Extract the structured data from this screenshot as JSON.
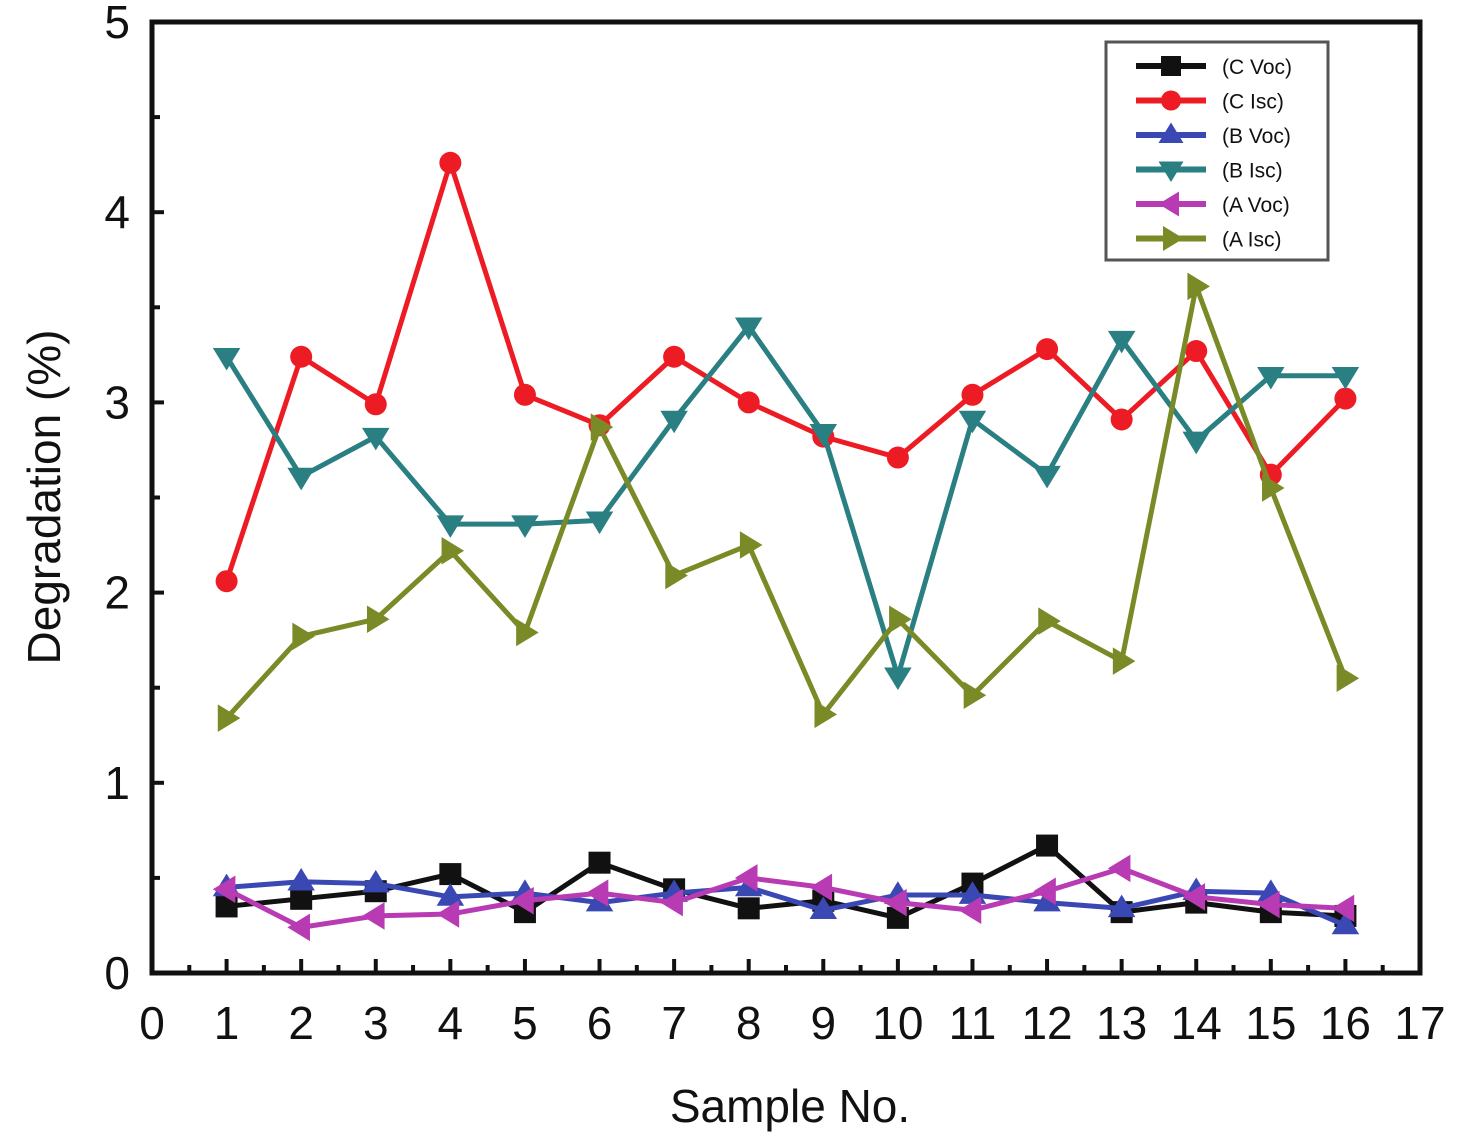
{
  "chart_data": {
    "type": "line",
    "title": "",
    "xlabel": "Sample No.",
    "ylabel": "Degradation (%)",
    "xlim": [
      0,
      17
    ],
    "ylim": [
      0,
      5
    ],
    "xticks": [
      "0",
      "1",
      "2",
      "3",
      "4",
      "5",
      "6",
      "7",
      "8",
      "9",
      "10",
      "11",
      "12",
      "13",
      "14",
      "15",
      "16",
      "17"
    ],
    "yticks": [
      "0",
      "1",
      "2",
      "3",
      "4",
      "5"
    ],
    "grid": false,
    "legend_position": "top-right",
    "x": [
      1,
      2,
      3,
      4,
      5,
      6,
      7,
      8,
      9,
      10,
      11,
      12,
      13,
      14,
      15,
      16
    ],
    "series": [
      {
        "name": "(C Voc)",
        "color": "#111111",
        "marker": "square",
        "values": [
          0.35,
          0.39,
          0.43,
          0.52,
          0.32,
          0.58,
          0.44,
          0.34,
          0.38,
          0.29,
          0.47,
          0.67,
          0.32,
          0.37,
          0.32,
          0.3
        ]
      },
      {
        "name": "(C Isc)",
        "color": "#ed1c24",
        "marker": "circle",
        "values": [
          2.06,
          3.24,
          2.99,
          4.26,
          3.04,
          2.88,
          3.24,
          3.0,
          2.82,
          2.71,
          3.04,
          3.28,
          2.91,
          3.27,
          2.62,
          3.02
        ]
      },
      {
        "name": "(B Voc)",
        "color": "#3a48b4",
        "marker": "triangle-up",
        "values": [
          0.45,
          0.48,
          0.47,
          0.4,
          0.42,
          0.37,
          0.42,
          0.45,
          0.33,
          0.41,
          0.41,
          0.37,
          0.34,
          0.43,
          0.42,
          0.25
        ]
      },
      {
        "name": "(B Isc)",
        "color": "#2a7f83",
        "marker": "triangle-down",
        "values": [
          3.24,
          2.61,
          2.82,
          2.36,
          2.36,
          2.38,
          2.91,
          3.4,
          2.84,
          1.56,
          2.91,
          2.62,
          3.33,
          2.8,
          3.14,
          3.14
        ]
      },
      {
        "name": "(A Voc)",
        "color": "#b83bb4",
        "marker": "triangle-left",
        "values": [
          0.44,
          0.24,
          0.3,
          0.31,
          0.38,
          0.42,
          0.37,
          0.5,
          0.45,
          0.37,
          0.33,
          0.43,
          0.55,
          0.4,
          0.36,
          0.34
        ]
      },
      {
        "name": "(A Isc)",
        "color": "#7a8a26",
        "marker": "triangle-right",
        "values": [
          1.34,
          1.77,
          1.86,
          2.22,
          1.79,
          2.87,
          2.09,
          2.25,
          1.36,
          1.86,
          1.46,
          1.85,
          1.64,
          3.61,
          2.55,
          1.55
        ]
      }
    ]
  }
}
